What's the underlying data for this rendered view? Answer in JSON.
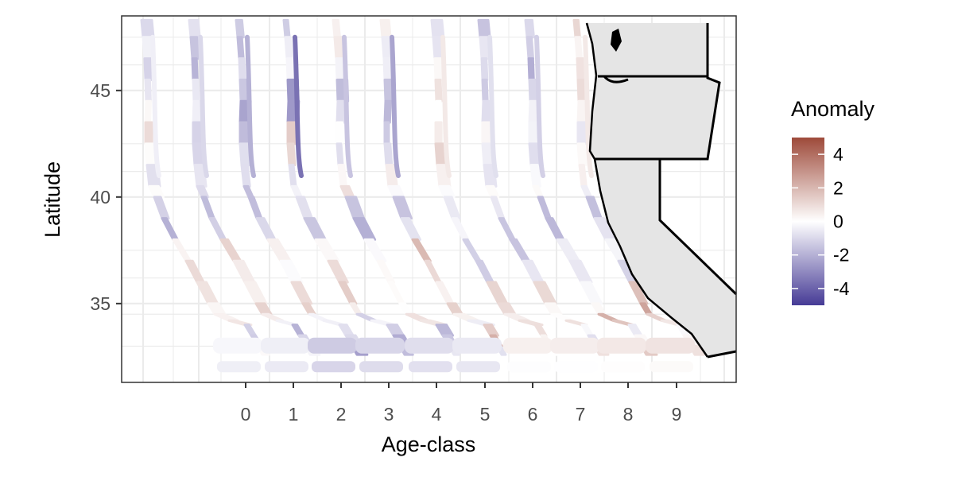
{
  "chart_data": {
    "type": "map",
    "xlabel": "Age-class",
    "ylabel": "Latitude",
    "x_categories": [
      "0",
      "1",
      "2",
      "3",
      "4",
      "5",
      "6",
      "7",
      "8",
      "9"
    ],
    "y_ticks": [
      35,
      40,
      45
    ],
    "ylim": [
      31.3,
      48.5
    ],
    "grid": true,
    "legend": {
      "title": "Anomaly",
      "position": "right",
      "labels": [
        "4",
        "2",
        "0",
        "-2",
        "-4"
      ],
      "values": [
        4,
        2,
        0,
        -2,
        -4
      ],
      "range": [
        -5,
        5
      ],
      "colors": {
        "high": "#9e4a3a",
        "mid": "#ffffff",
        "low": "#463b96"
      }
    },
    "panels": [
      {
        "label": "first strip (no age label)",
        "anomaly_by_segment": [
          -1.2,
          -0.4,
          0.6,
          0.3,
          -2.1,
          0.2,
          0.9,
          0.7,
          -1.1,
          -0.3
        ]
      },
      {
        "label": "0",
        "anomaly_by_segment": [
          -1.5,
          -1.0,
          -0.6,
          -0.9,
          -1.8,
          0.4,
          1.1,
          0.8,
          -1.9,
          -0.6
        ]
      },
      {
        "label": "1",
        "anomaly_by_segment": [
          -0.8,
          -2.0,
          -1.7,
          -0.5,
          -2.4,
          0.3,
          0.9,
          0.5,
          -1.0,
          -1.9
        ]
      },
      {
        "label": "2",
        "anomaly_by_segment": [
          0.5,
          -3.6,
          1.0,
          0.6,
          -2.2,
          0.5,
          1.4,
          -0.4,
          -1.6,
          -1.5
        ]
      },
      {
        "label": "3",
        "anomaly_by_segment": [
          0.8,
          -1.5,
          -0.9,
          1.2,
          -1.8,
          -0.6,
          0.2,
          1.1,
          -1.3,
          -1.2
        ]
      },
      {
        "label": "4",
        "anomaly_by_segment": [
          0.9,
          -2.3,
          -1.4,
          0.7,
          -1.9,
          1.3,
          1.6,
          -1.0,
          2.6,
          -0.8
        ]
      },
      {
        "label": "5",
        "anomaly_by_segment": [
          -0.7,
          0.6,
          0.5,
          0.9,
          -0.5,
          -1.4,
          0.4,
          1.4,
          0.2,
          0.6
        ]
      },
      {
        "label": "6",
        "anomaly_by_segment": [
          -1.3,
          -0.8,
          -0.6,
          0.2,
          -0.8,
          -1.9,
          0.8,
          0.6,
          -0.6,
          0.7
        ]
      },
      {
        "label": "7",
        "anomaly_by_segment": [
          -1.6,
          -1.2,
          -0.4,
          0.1,
          -1.5,
          -1.1,
          -0.5,
          2.4,
          -0.3,
          0.9
        ]
      },
      {
        "label": "8",
        "anomaly_by_segment": [
          1.0,
          0.6,
          -0.2,
          0.3,
          -1.0,
          -1.6,
          1.8,
          2.2,
          -0.9,
          1.1
        ]
      }
    ],
    "map": {
      "land_color": "#e5e5e5",
      "border_color": "#000000"
    }
  }
}
